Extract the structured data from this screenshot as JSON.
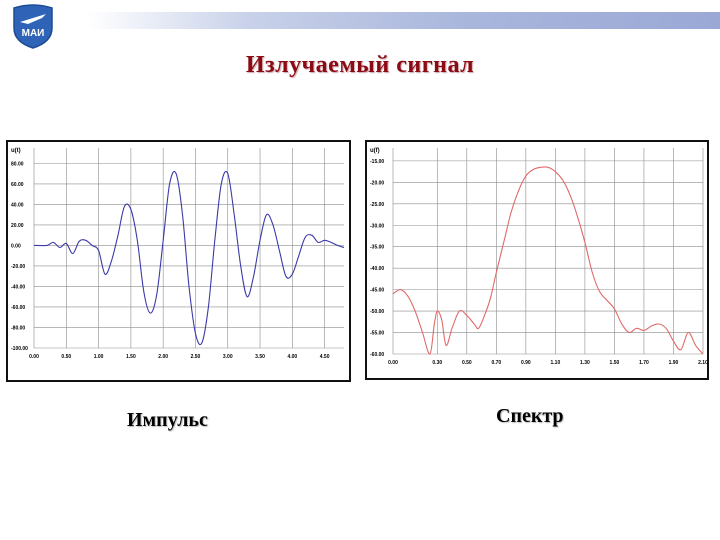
{
  "slide": {
    "title": "Излучаемый сигнал",
    "logo_text": "МАИ",
    "captions": {
      "pulse": "Импульс",
      "spectrum": "Спектр"
    }
  },
  "colors": {
    "title": "#8b0a14",
    "pulse_line": "#3a3aaa",
    "spectrum_line": "#e06a6a",
    "grid": "#8c8c8c",
    "logo": "#2f63b8"
  },
  "chart_data": [
    {
      "type": "line",
      "title": "",
      "ylabel": "u(t)",
      "xlabel": "",
      "xlim": [
        0,
        4.8
      ],
      "ylim": [
        -100,
        95
      ],
      "x_ticks": [
        0,
        0.5,
        1.0,
        1.5,
        2.0,
        2.5,
        3.0,
        3.5,
        4.0,
        4.5
      ],
      "x_tick_labels": [
        "0.00",
        "0.50",
        "1.00",
        "1.50",
        "2.00",
        "2.50",
        "3.00",
        "3.50",
        "4.00",
        "4.50"
      ],
      "y_ticks": [
        80,
        60,
        40,
        20,
        0,
        -20,
        -40,
        -60,
        -80,
        -100
      ],
      "y_tick_labels": [
        "80.00",
        "60.00",
        "40.00",
        "20.00",
        "0.00",
        "-20.00",
        "-40.00",
        "-60.00",
        "-80.00",
        "-100.00"
      ],
      "grid": true,
      "series": [
        {
          "color": "#3a3aaa",
          "x": [
            0.0,
            0.2,
            0.3,
            0.4,
            0.5,
            0.6,
            0.7,
            0.8,
            0.9,
            1.0,
            1.1,
            1.2,
            1.3,
            1.4,
            1.5,
            1.6,
            1.7,
            1.8,
            1.9,
            2.0,
            2.1,
            2.2,
            2.3,
            2.4,
            2.5,
            2.6,
            2.7,
            2.8,
            2.9,
            3.0,
            3.1,
            3.2,
            3.3,
            3.4,
            3.5,
            3.6,
            3.7,
            3.8,
            3.9,
            4.0,
            4.1,
            4.2,
            4.3,
            4.4,
            4.5,
            4.6,
            4.7,
            4.8
          ],
          "y": [
            0,
            0,
            3,
            -2,
            2,
            -8,
            4,
            5,
            0,
            -5,
            -28,
            -15,
            10,
            38,
            35,
            5,
            -45,
            -66,
            -48,
            5,
            60,
            70,
            30,
            -40,
            -86,
            -95,
            -60,
            5,
            60,
            70,
            30,
            -20,
            -50,
            -30,
            5,
            30,
            20,
            -5,
            -30,
            -28,
            -10,
            8,
            10,
            3,
            5,
            3,
            0,
            -2
          ]
        }
      ]
    },
    {
      "type": "line",
      "title": "",
      "ylabel": "u(f)",
      "xlabel": "",
      "xlim": [
        0.0,
        2.1
      ],
      "ylim": [
        -60,
        -12
      ],
      "x_ticks": [
        0.0,
        0.3,
        0.5,
        0.7,
        0.9,
        1.1,
        1.3,
        1.5,
        1.7,
        1.9,
        2.1
      ],
      "x_tick_labels": [
        "0.00",
        "0.30",
        "0.50",
        "0.70",
        "0.90",
        "1.10",
        "1.30",
        "1.50",
        "1.70",
        "1.90",
        "2.10"
      ],
      "y_ticks": [
        -15,
        -20,
        -25,
        -30,
        -35,
        -40,
        -45,
        -50,
        -55,
        -60
      ],
      "y_tick_labels": [
        "-15.00",
        "-20.00",
        "-25.00",
        "-30.00",
        "-35.00",
        "-40.00",
        "-45.00",
        "-50.00",
        "-55.00",
        "-60.00"
      ],
      "grid": true,
      "series": [
        {
          "color": "#e06a6a",
          "x": [
            0.0,
            0.05,
            0.1,
            0.15,
            0.2,
            0.25,
            0.28,
            0.3,
            0.33,
            0.36,
            0.4,
            0.45,
            0.5,
            0.55,
            0.58,
            0.62,
            0.66,
            0.7,
            0.75,
            0.8,
            0.85,
            0.9,
            0.95,
            1.0,
            1.05,
            1.1,
            1.15,
            1.2,
            1.25,
            1.3,
            1.35,
            1.4,
            1.45,
            1.5,
            1.55,
            1.6,
            1.65,
            1.7,
            1.75,
            1.8,
            1.85,
            1.9,
            1.95,
            2.0,
            2.05,
            2.1
          ],
          "y": [
            -46,
            -45,
            -46.5,
            -50,
            -55,
            -60,
            -53,
            -50,
            -52,
            -58,
            -54,
            -50,
            -51,
            -53,
            -54,
            -51,
            -47,
            -41,
            -34,
            -27,
            -22,
            -18.5,
            -17,
            -16.5,
            -16.5,
            -17.5,
            -19.5,
            -23,
            -28,
            -34,
            -41,
            -45.5,
            -47.5,
            -49.5,
            -53,
            -55,
            -54,
            -54.5,
            -53.5,
            -53,
            -54,
            -57,
            -59,
            -55,
            -58,
            -60
          ]
        }
      ]
    }
  ]
}
